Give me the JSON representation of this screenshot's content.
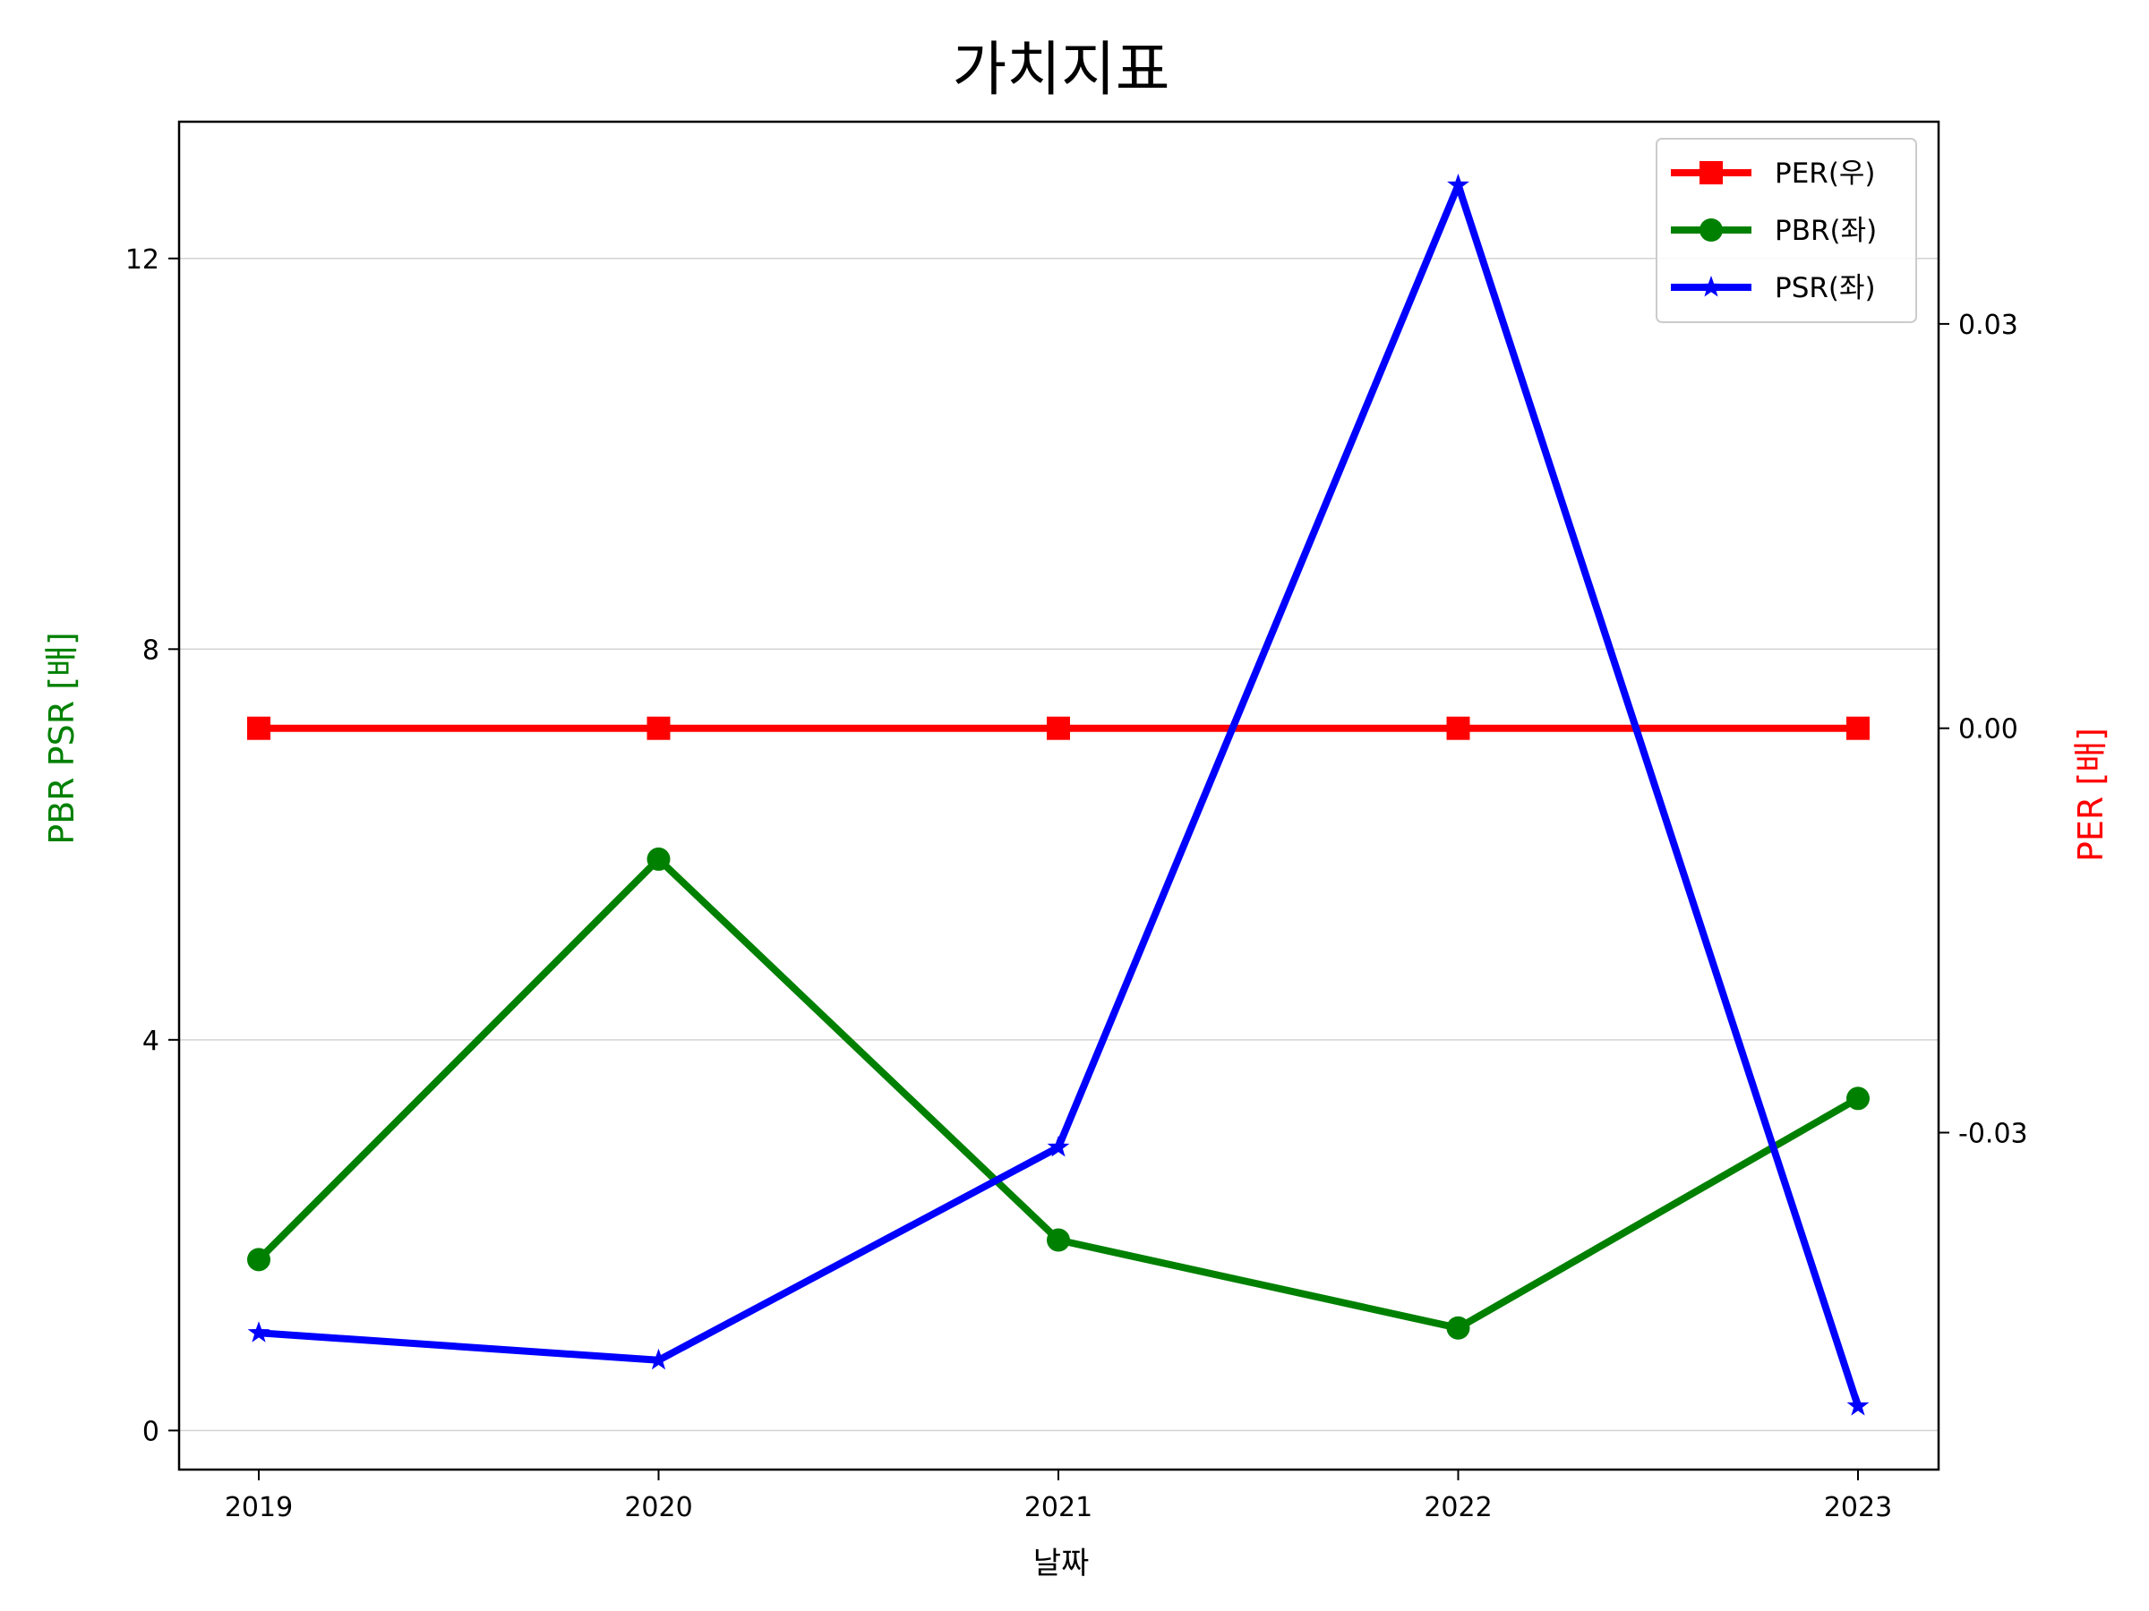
{
  "chart_data": {
    "type": "line",
    "title": "가치지표",
    "xlabel": "날짜",
    "ylabel_left": "PBR PSR [배]",
    "ylabel_right": "PER [배]",
    "x": [
      "2019",
      "2020",
      "2021",
      "2022",
      "2023"
    ],
    "y_left_ticks": [
      "0",
      "4",
      "8",
      "12"
    ],
    "y_right_ticks": [
      "-0.03",
      "0.00",
      "0.03"
    ],
    "ylim_left": [
      -0.4,
      13.4
    ],
    "ylim_right": [
      -0.055,
      0.045
    ],
    "grid": "horizontal (left axis)",
    "legend_position": "top-right",
    "series": [
      {
        "name": "PER(우)",
        "axis": "right",
        "color": "#ff0000",
        "marker": "square",
        "values": [
          0,
          0,
          0,
          0,
          0
        ]
      },
      {
        "name": "PBR(좌)",
        "axis": "left",
        "color": "#008000",
        "marker": "circle",
        "values": [
          1.75,
          5.85,
          1.95,
          1.05,
          3.4
        ]
      },
      {
        "name": "PSR(좌)",
        "axis": "left",
        "color": "#0000ff",
        "marker": "star",
        "values": [
          1.0,
          0.72,
          2.9,
          12.75,
          0.25
        ]
      }
    ]
  }
}
